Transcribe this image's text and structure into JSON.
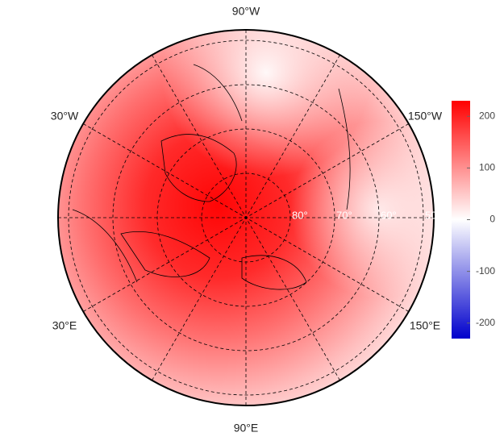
{
  "map": {
    "meridian_labels": [
      "90°W",
      "30°W",
      "150°W",
      "30°E",
      "150°E",
      "90°E"
    ],
    "parallel_labels": [
      "80°",
      "70°",
      "60°",
      "50°"
    ]
  },
  "colorbar": {
    "ylim": [
      -230,
      230
    ],
    "yticks": [
      -200,
      -100,
      0,
      100,
      200
    ],
    "colors": [
      "#0000cc",
      "#ffffff",
      "#ff0000"
    ]
  }
}
